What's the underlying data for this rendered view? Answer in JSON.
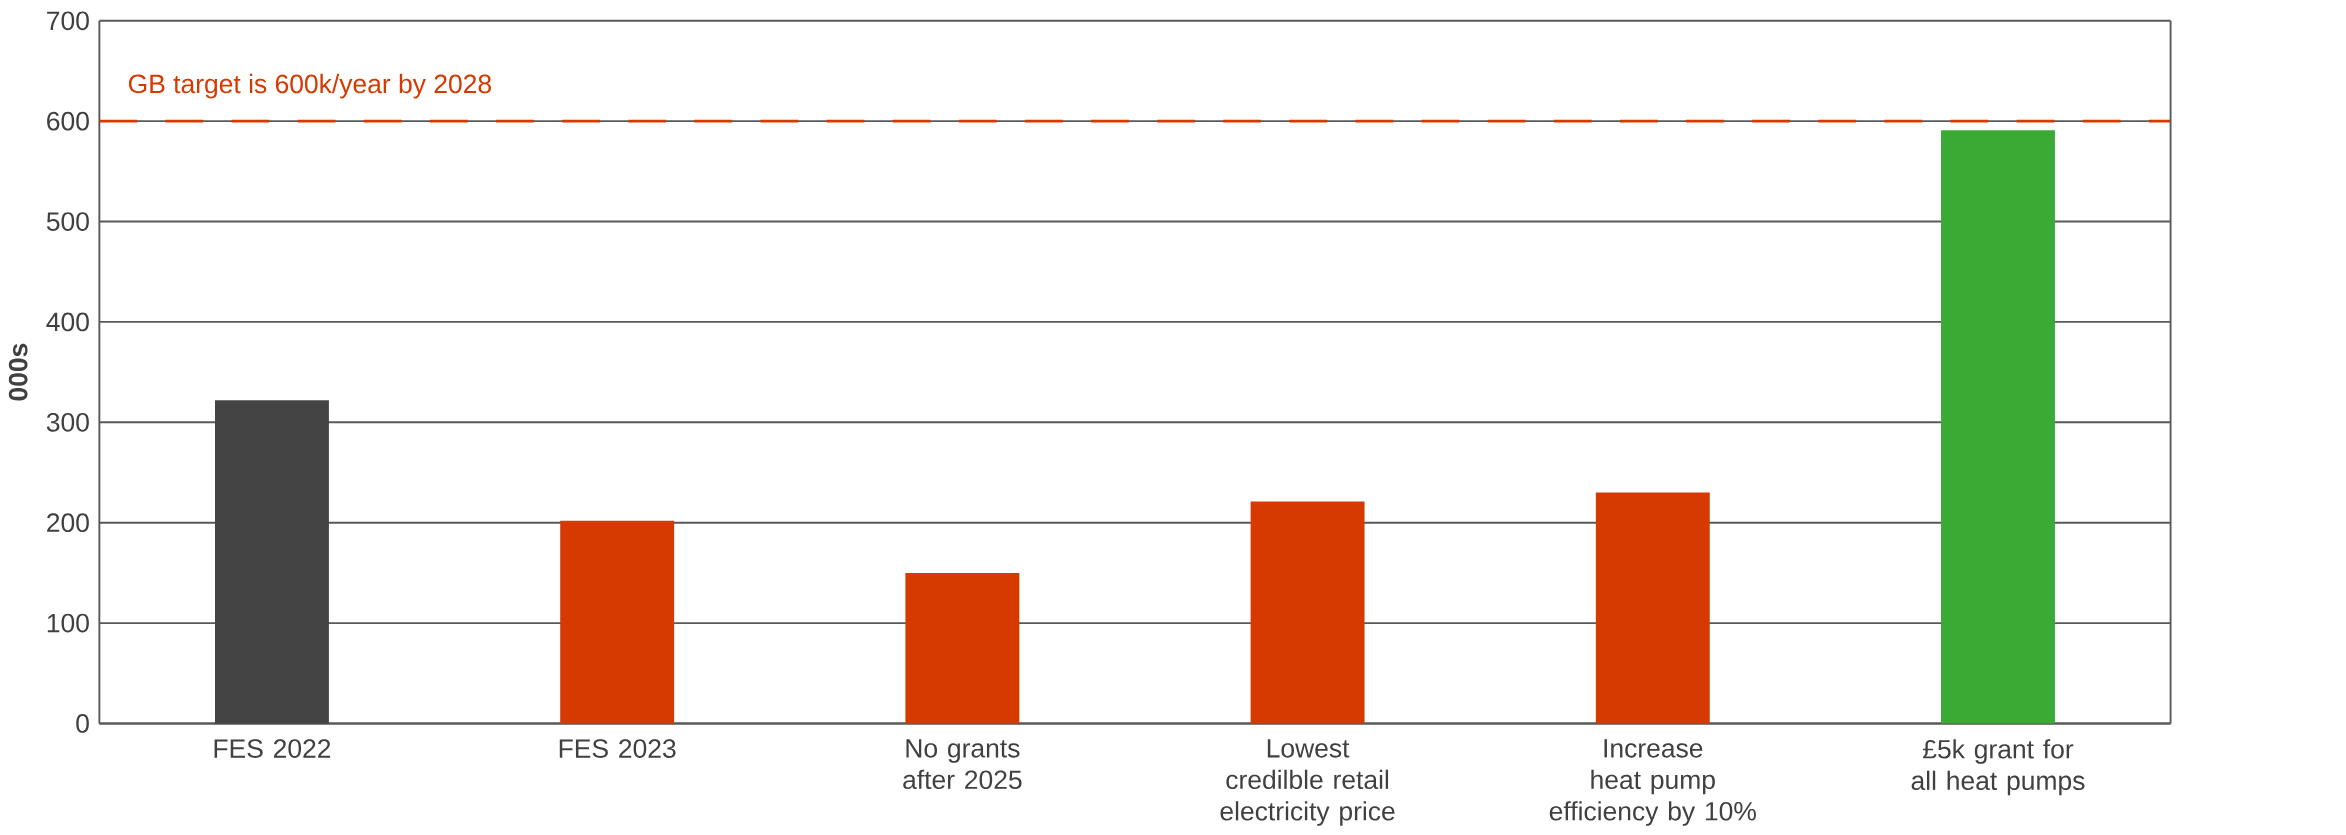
{
  "chart_data": {
    "type": "bar",
    "ylabel": "000s",
    "categories": [
      "FES 2022",
      "FES 2023",
      "No grants after 2025",
      "Lowest credilble retail electricity price",
      "Increase heat pump efficiency by 10%",
      "£5k grant for all heat pumps"
    ],
    "values": [
      322,
      202,
      150,
      221,
      230,
      591
    ],
    "colors": [
      "#444444",
      "#d63a00",
      "#d63a00",
      "#d63a00",
      "#d63a00",
      "#3aaa35"
    ],
    "ylim": [
      0,
      700
    ],
    "yticks": [
      0,
      100,
      200,
      300,
      400,
      500,
      600,
      700
    ],
    "grid": "y",
    "ref_lines": [
      {
        "axis": "y",
        "value": 600,
        "label": "GB target is 600k/year by 2028",
        "color": "#d63a00",
        "line_style": "dashed"
      }
    ]
  }
}
